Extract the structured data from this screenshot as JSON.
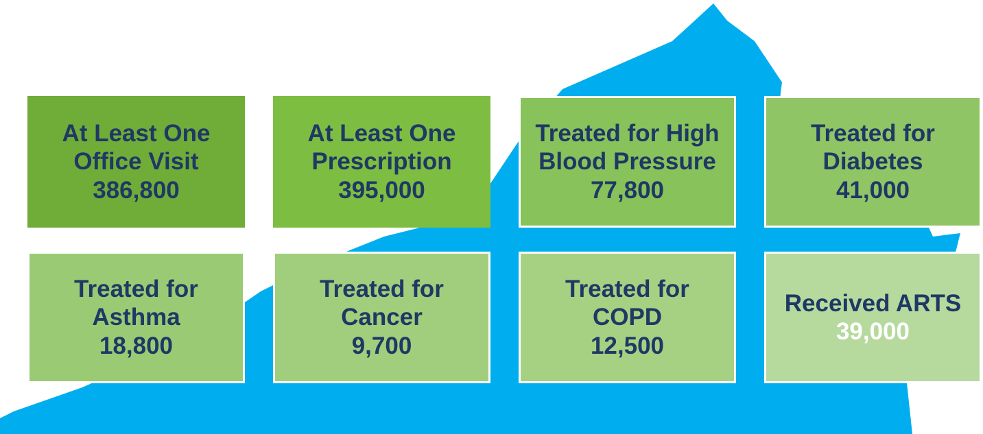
{
  "tiles": [
    {
      "label": "At Least One Office Visit",
      "value": "386,800"
    },
    {
      "label": "At Least One Prescription",
      "value": "395,000"
    },
    {
      "label": "Treated for High Blood Pressure",
      "value": "77,800"
    },
    {
      "label": "Treated for Diabetes",
      "value": "41,000"
    },
    {
      "label": "Treated for Asthma",
      "value": "18,800"
    },
    {
      "label": "Treated for Cancer",
      "value": "9,700"
    },
    {
      "label": "Treated for COPD",
      "value": "12,500"
    },
    {
      "label": "Received ARTS",
      "value": "39,000"
    }
  ]
}
